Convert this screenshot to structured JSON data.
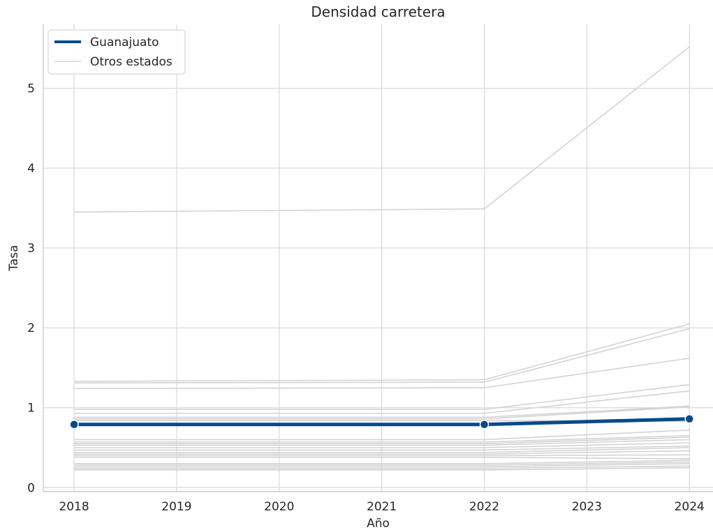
{
  "chart_data": {
    "type": "line",
    "title": "Densidad carretera",
    "xlabel": "Año",
    "ylabel": "Tasa",
    "x": [
      2018,
      2022,
      2024
    ],
    "x_ticks": [
      2018,
      2019,
      2020,
      2021,
      2022,
      2023,
      2024
    ],
    "y_ticks": [
      0,
      1,
      2,
      3,
      4,
      5
    ],
    "xlim": [
      2017.7,
      2024.23
    ],
    "ylim": [
      -0.05,
      5.8
    ],
    "grid": true,
    "legend_position": "top-left",
    "legend": [
      "Guanajuato",
      "Otros estados"
    ],
    "series": [
      {
        "name": "Guanajuato",
        "values": [
          0.79,
          0.79,
          0.86
        ]
      }
    ],
    "other_series_name": "Otros estados",
    "other_series": [
      [
        3.45,
        3.49,
        5.52
      ],
      [
        1.33,
        1.35,
        2.05
      ],
      [
        1.31,
        1.32,
        1.99
      ],
      [
        1.24,
        1.25,
        1.62
      ],
      [
        0.98,
        0.98,
        1.29
      ],
      [
        0.93,
        0.93,
        1.21
      ],
      [
        0.88,
        0.88,
        1.02
      ],
      [
        0.86,
        0.86,
        1.01
      ],
      [
        0.84,
        0.84,
        0.83
      ],
      [
        0.6,
        0.6,
        0.72
      ],
      [
        0.57,
        0.57,
        0.65
      ],
      [
        0.55,
        0.55,
        0.63
      ],
      [
        0.53,
        0.53,
        0.6
      ],
      [
        0.5,
        0.5,
        0.56
      ],
      [
        0.47,
        0.47,
        0.52
      ],
      [
        0.44,
        0.44,
        0.5
      ],
      [
        0.42,
        0.42,
        0.46
      ],
      [
        0.4,
        0.4,
        0.41
      ],
      [
        0.38,
        0.38,
        0.36
      ],
      [
        0.3,
        0.3,
        0.34
      ],
      [
        0.28,
        0.28,
        0.32
      ],
      [
        0.26,
        0.26,
        0.3
      ],
      [
        0.24,
        0.24,
        0.27
      ],
      [
        0.22,
        0.22,
        0.25
      ]
    ],
    "colors": {
      "highlight": "#004a8a",
      "others": "#d3d3d3",
      "grid": "#d9d9d9",
      "axis": "#cccccc"
    }
  }
}
